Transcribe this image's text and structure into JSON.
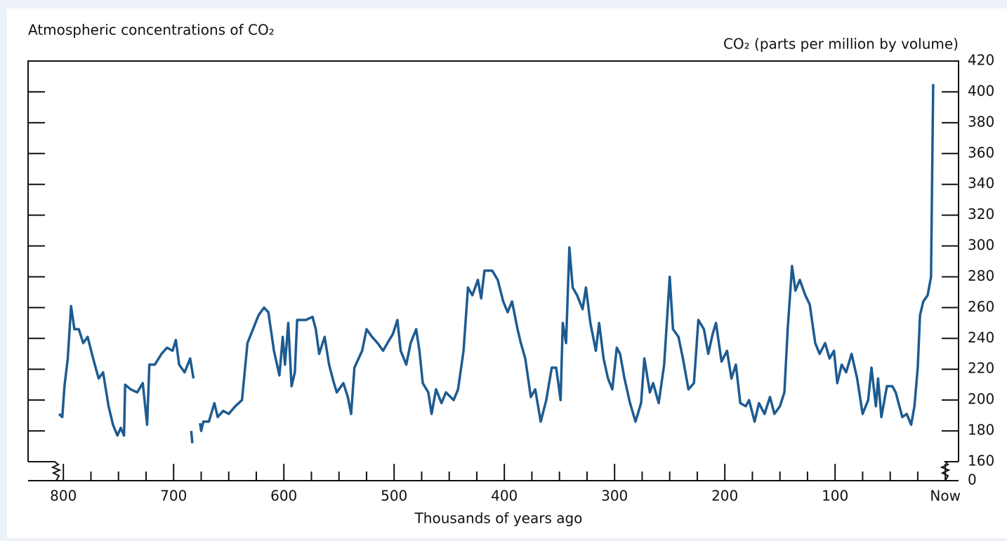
{
  "chart_data": {
    "type": "line",
    "title": "Atmospheric concentrations of CO₂",
    "y_label": "CO₂ (parts per million by volume)",
    "x_label": "Thousands of years ago",
    "color": "#1d5b91",
    "axis_break": true,
    "xlim": [
      832,
      -12
    ],
    "xticks": [
      800,
      700,
      600,
      500,
      400,
      300,
      200,
      100,
      {
        "value": 0,
        "label": "Now"
      }
    ],
    "xminorticks": [
      775,
      750,
      725,
      675,
      650,
      625,
      575,
      550,
      525,
      475,
      450,
      425,
      375,
      350,
      325,
      275,
      250,
      225,
      175,
      150,
      125,
      75,
      50,
      25
    ],
    "ylim": [
      0,
      420
    ],
    "yticks": [
      0,
      160,
      180,
      200,
      220,
      240,
      260,
      280,
      300,
      320,
      340,
      360,
      380,
      400,
      420
    ],
    "x": [
      804,
      801,
      799,
      796,
      793,
      790,
      786,
      782,
      778,
      773,
      768,
      764,
      759,
      755,
      751,
      748,
      745,
      744,
      739,
      733,
      728,
      724,
      722,
      717,
      711,
      706,
      701,
      698,
      695,
      690,
      685,
      682,
      null,
      684,
      683,
      null,
      676,
      675,
      673,
      668,
      663,
      660,
      655,
      650,
      644,
      638,
      633,
      628,
      623,
      618,
      614,
      609,
      604,
      601,
      599,
      596,
      593,
      590,
      588,
      580,
      574,
      571,
      568,
      563,
      559,
      555,
      552,
      546,
      542,
      539,
      536,
      529,
      525,
      520,
      515,
      510,
      506,
      501,
      497,
      494,
      489,
      485,
      480,
      477,
      474,
      469,
      466,
      462,
      457,
      453,
      446,
      442,
      437,
      433,
      429,
      424,
      421,
      418,
      411,
      406,
      401,
      397,
      393,
      388,
      385,
      381,
      376,
      372,
      367,
      362,
      357,
      353,
      349,
      347,
      344,
      341,
      338,
      334,
      329,
      326,
      322,
      317,
      314,
      310,
      306,
      302,
      298,
      295,
      291,
      286,
      281,
      276,
      273,
      268,
      265,
      260,
      255,
      250,
      247,
      242,
      238,
      233,
      228,
      224,
      219,
      215,
      211,
      208,
      203,
      198,
      194,
      190,
      186,
      181,
      178,
      173,
      169,
      164,
      159,
      155,
      150,
      146,
      143,
      139,
      136,
      132,
      127,
      123,
      118,
      114,
      109,
      105,
      101,
      98,
      94,
      90,
      85,
      80,
      75,
      70,
      67,
      63,
      61,
      58,
      53,
      48,
      45,
      39,
      35,
      31,
      28,
      25,
      23,
      20,
      16,
      13,
      11
    ],
    "values": [
      191,
      189,
      209,
      227,
      261,
      246,
      246,
      237,
      241,
      227,
      214,
      218,
      196,
      184,
      177,
      182,
      177,
      210,
      207,
      205,
      211,
      184,
      223,
      223,
      230,
      234,
      232,
      239,
      223,
      218,
      227,
      214,
      null,
      180,
      172,
      null,
      185,
      180,
      186,
      186,
      198,
      189,
      193,
      191,
      196,
      200,
      237,
      246,
      255,
      260,
      257,
      232,
      216,
      241,
      223,
      250,
      209,
      218,
      252,
      252,
      254,
      246,
      230,
      241,
      223,
      212,
      205,
      211,
      202,
      191,
      221,
      232,
      246,
      241,
      237,
      232,
      237,
      243,
      252,
      232,
      223,
      237,
      246,
      232,
      211,
      205,
      191,
      207,
      198,
      205,
      200,
      207,
      232,
      273,
      268,
      278,
      266,
      284,
      284,
      278,
      264,
      257,
      264,
      246,
      237,
      227,
      202,
      207,
      186,
      200,
      221,
      221,
      200,
      250,
      237,
      299,
      273,
      268,
      259,
      273,
      250,
      232,
      250,
      227,
      214,
      207,
      234,
      230,
      214,
      198,
      186,
      198,
      227,
      205,
      211,
      198,
      223,
      280,
      246,
      241,
      227,
      207,
      211,
      252,
      246,
      230,
      243,
      250,
      225,
      232,
      214,
      223,
      198,
      196,
      200,
      186,
      198,
      191,
      202,
      191,
      196,
      205,
      246,
      287,
      271,
      278,
      268,
      262,
      237,
      230,
      237,
      227,
      232,
      211,
      223,
      218,
      230,
      214,
      191,
      200,
      221,
      196,
      214,
      189,
      209,
      209,
      205,
      189,
      191,
      184,
      196,
      221,
      255,
      264,
      268,
      280,
      405
    ]
  }
}
